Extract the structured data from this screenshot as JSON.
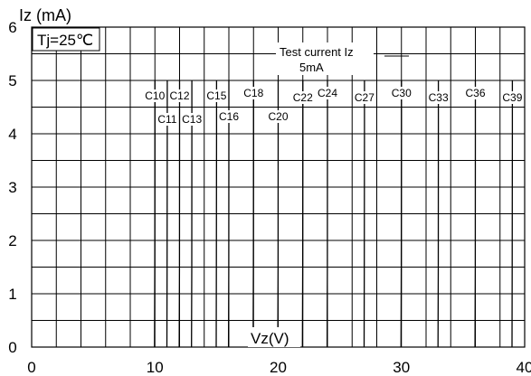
{
  "chart_data": {
    "type": "line",
    "title": "",
    "xlabel": "Vz(V)",
    "ylabel": "Iz (mA)",
    "condition": "Tj=25℃",
    "note_line1": "Test current Iz",
    "note_line2": "5mA",
    "xlim": [
      0,
      40
    ],
    "ylim": [
      0,
      6
    ],
    "xticks": [
      0,
      10,
      20,
      30,
      40
    ],
    "yticks": [
      0,
      1,
      2,
      3,
      4,
      5,
      6
    ],
    "grid": true,
    "series": [
      {
        "name": "C10",
        "x": [
          9.97,
          9.99,
          10.0,
          10.0
        ],
        "y": [
          0,
          1.5,
          4.0,
          5.0
        ],
        "label_row": "upper",
        "label_x": 10.0
      },
      {
        "name": "C11",
        "x": [
          10.97,
          10.99,
          11.0,
          11.0
        ],
        "y": [
          0,
          1.5,
          4.0,
          5.0
        ],
        "label_row": "lower",
        "label_x": 11.0
      },
      {
        "name": "C12",
        "x": [
          11.97,
          11.99,
          12.0,
          12.0
        ],
        "y": [
          0,
          1.5,
          4.0,
          5.0
        ],
        "label_row": "upper",
        "label_x": 12.0
      },
      {
        "name": "C13",
        "x": [
          12.97,
          12.99,
          13.0,
          13.0
        ],
        "y": [
          0,
          1.5,
          4.0,
          5.0
        ],
        "label_row": "lower",
        "label_x": 13.0
      },
      {
        "name": "C15",
        "x": [
          14.97,
          14.99,
          15.0,
          15.0
        ],
        "y": [
          0,
          1.5,
          4.0,
          5.0
        ],
        "label_row": "upper",
        "label_x": 15.0
      },
      {
        "name": "C16",
        "x": [
          15.97,
          15.99,
          16.0,
          16.0
        ],
        "y": [
          0,
          1.5,
          4.0,
          5.0
        ],
        "label_row": "lower2",
        "label_x": 16.0
      },
      {
        "name": "C18",
        "x": [
          17.97,
          17.99,
          18.0,
          18.0
        ],
        "y": [
          0,
          1.5,
          4.0,
          5.0
        ],
        "label_row": "upper2",
        "label_x": 18.0
      },
      {
        "name": "C20",
        "x": [
          19.97,
          19.99,
          20.0,
          20.0
        ],
        "y": [
          0,
          1.5,
          4.0,
          5.0
        ],
        "label_row": "lower2",
        "label_x": 20.0
      },
      {
        "name": "C22",
        "x": [
          21.97,
          21.99,
          22.0,
          22.0
        ],
        "y": [
          0,
          1.5,
          4.0,
          5.0
        ],
        "label_row": "upper3",
        "label_x": 22.0
      },
      {
        "name": "C24",
        "x": [
          23.97,
          23.99,
          24.0,
          24.0
        ],
        "y": [
          0,
          1.5,
          4.0,
          5.0
        ],
        "label_row": "upper2",
        "label_x": 24.0
      },
      {
        "name": "C27",
        "x": [
          26.97,
          26.99,
          27.0,
          27.0
        ],
        "y": [
          0,
          1.5,
          4.0,
          5.0
        ],
        "label_row": "upper3",
        "label_x": 27.0
      },
      {
        "name": "C30",
        "x": [
          29.97,
          29.99,
          30.0,
          30.0
        ],
        "y": [
          0,
          1.5,
          4.0,
          5.0
        ],
        "label_row": "upper2",
        "label_x": 30.0
      },
      {
        "name": "C33",
        "x": [
          32.97,
          32.99,
          33.0,
          33.0
        ],
        "y": [
          0,
          1.5,
          4.0,
          5.0
        ],
        "label_row": "upper3",
        "label_x": 33.0
      },
      {
        "name": "C36",
        "x": [
          35.97,
          35.99,
          36.0,
          36.0
        ],
        "y": [
          0,
          1.5,
          4.0,
          5.0
        ],
        "label_row": "upper2",
        "label_x": 36.0
      },
      {
        "name": "C39",
        "x": [
          38.97,
          38.99,
          39.0,
          39.0
        ],
        "y": [
          0,
          1.5,
          4.0,
          5.0
        ],
        "label_row": "upper3",
        "label_x": 39.0
      }
    ]
  }
}
